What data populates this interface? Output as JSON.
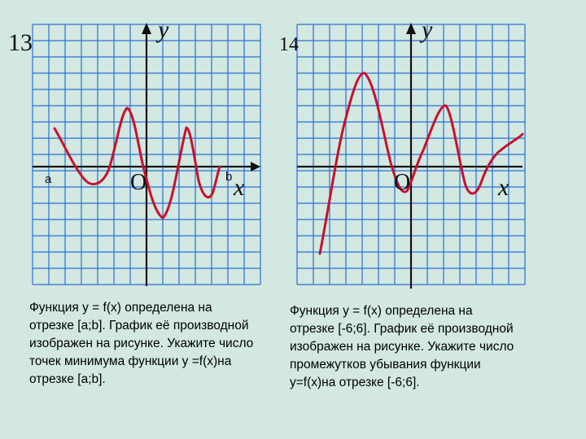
{
  "background_color": "#d2e8e0",
  "grid_color": "#2a6fd6",
  "curve_color": "#c8102e",
  "graph13": {
    "number": "13",
    "y_label": "y",
    "x_label": "x",
    "origin_label": "O",
    "a_label": "a",
    "b_label": "b",
    "description_lines": [
      "Функция y = f(x) определена на",
      "отрезке [a;b]. График её производной",
      "изображен на рисунке. Укажите число",
      "точек минимума функции y =f(x)на",
      "отрезке [a;b]."
    ]
  },
  "graph14": {
    "number": "14",
    "y_label": "y",
    "x_label": "x",
    "origin_label": "O",
    "description_lines": [
      "Функция y = f(x) определена на",
      "отрезке [-6;6]. График её производной",
      "изображен на рисунке. Укажите число",
      "промежутков убывания функции",
      "y=f(x)на отрезке [-6;6]."
    ]
  }
}
